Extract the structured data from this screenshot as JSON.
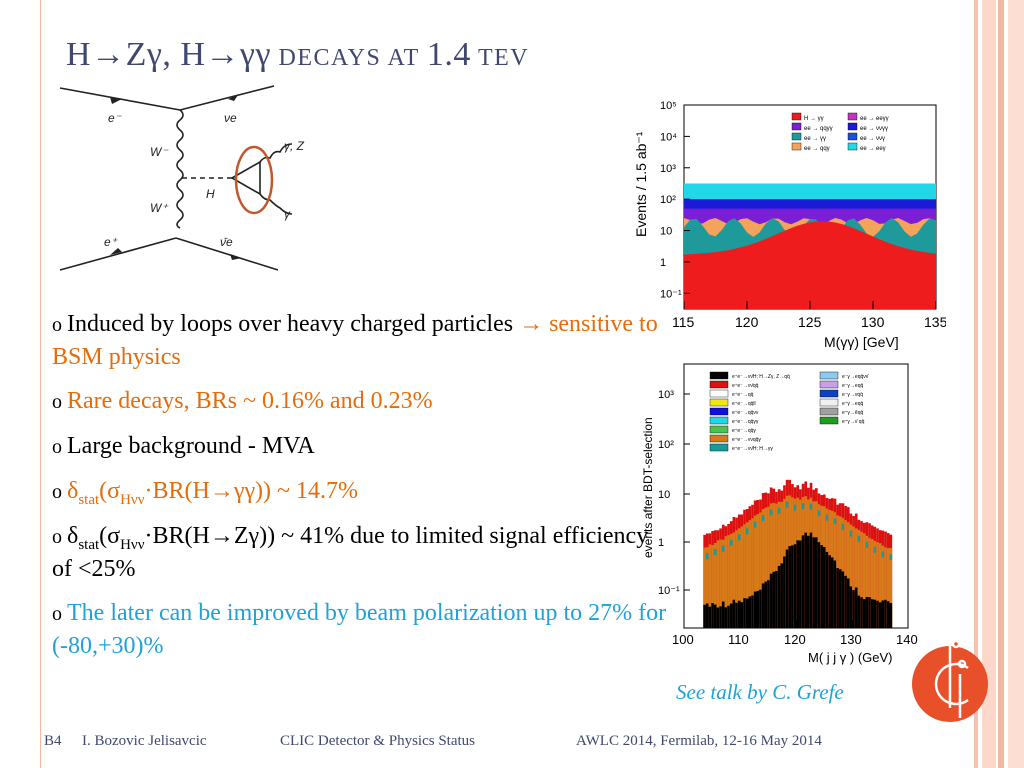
{
  "slide": {
    "title_h1": "H",
    "title_z": "Z",
    "title_g1": "γ, H",
    "title_g2": "γγ",
    "title_rest": " decays at ",
    "title_energy": "1.4",
    "title_unit": " TeV"
  },
  "diagram": {
    "labels": {
      "em": "e⁻",
      "ep": "e⁺",
      "nue": "νe",
      "nuebar": "ν̄e",
      "wm": "W⁻",
      "wp": "W⁺",
      "h": "H",
      "gz": "γ, Z",
      "g": "γ"
    },
    "circle_color": "#c0582b"
  },
  "bullets": {
    "b1_text": "Induced by loops over heavy charged particles ",
    "b1_arrow": "→",
    "b1_orange": " sensitive to BSM physics",
    "b2": "Rare decays, BRs ~ 0.16% and 0.23%",
    "b3": "Large background - MVA",
    "b4_delta": "δ",
    "b4_sub": "stat",
    "b4_a": "(σ",
    "b4_sub2": "Hνν",
    "b4_b": "·BR(H",
    "b4_c": "γγ)) ~ 14.7%",
    "b5_delta": "δ",
    "b5_sub": "stat",
    "b5_a": "(σ",
    "b5_sub2": "Hνν",
    "b5_b": "·BR(H",
    "b5_c": "Zγ)) ~ 41% due to limited signal efficiency of <25%",
    "b6": "The later can be improved by beam polarization up to 27% for (-80,+30)%"
  },
  "chart_data": [
    {
      "type": "area",
      "ylabel": "Events / 1.5 ab⁻¹",
      "xlabel": "M(γγ) [GeV]",
      "xlim": [
        115,
        135
      ],
      "ylim_log": [
        0.05,
        100000
      ],
      "scale": "log",
      "x_ticks": [
        "115",
        "120",
        "125",
        "130",
        "135"
      ],
      "y_ticks": [
        "10⁻¹",
        "1",
        "10",
        "10²",
        "10³",
        "10⁴",
        "10⁵"
      ],
      "legend": [
        {
          "name": "H → γγ",
          "color": "#ee1c1c"
        },
        {
          "name": "ee → qqγγ",
          "color": "#7a1fd6"
        },
        {
          "name": "ee → γγ",
          "color": "#1f9a9a"
        },
        {
          "name": "ee → qqγ",
          "color": "#f3a35a"
        },
        {
          "name": "ee → eeγγ",
          "color": "#c233c2"
        },
        {
          "name": "ee → ννγγ",
          "color": "#1b1bd6"
        },
        {
          "name": "ee → ννγ",
          "color": "#1b4fe0"
        },
        {
          "name": "ee → eeγ",
          "color": "#22d8e8"
        }
      ]
    },
    {
      "type": "bar",
      "ylabel": "events after BDT-selection",
      "xlabel": "M( j j γ ) (GeV)",
      "xlim": [
        100,
        140
      ],
      "scale": "log",
      "x_ticks": [
        "100",
        "110",
        "120",
        "130",
        "140"
      ],
      "y_ticks": [
        "10⁻¹",
        "1",
        "10",
        "10²",
        "10³"
      ],
      "legend": [
        {
          "name": "e⁺e⁻→νν̄H; H→Zγ, Z→qq̄",
          "color": "#000000"
        },
        {
          "name": "e⁺e⁻→νν̄qq̄",
          "color": "#dd1010"
        },
        {
          "name": "e⁺e⁻→qq̄",
          "color": "#ffffff"
        },
        {
          "name": "e⁺e⁻→qq̄ll",
          "color": "#f0e614"
        },
        {
          "name": "e⁺e⁻→qq̄νν",
          "color": "#1010dd"
        },
        {
          "name": "e⁺e⁻→qq̄γγ",
          "color": "#22d8e8"
        },
        {
          "name": "e⁺e⁻→qq̄γ",
          "color": "#4fc04f"
        },
        {
          "name": "e⁺e⁻→ννqq̄γ",
          "color": "#d67a1a"
        },
        {
          "name": "e⁺e⁻→νν̄H; H→γγ",
          "color": "#1a9a9a"
        },
        {
          "name": "e⁻γ→eqq̄νν̄",
          "color": "#90c8f0"
        },
        {
          "name": "e⁻γ→eqq̄",
          "color": "#c8a0e8"
        },
        {
          "name": "e⁻γ→νqq̄",
          "color": "#1040c0"
        },
        {
          "name": "e⁺γ→eqq̄",
          "color": "#f0f0f0"
        },
        {
          "name": "e⁺γ→ẽqq̄",
          "color": "#a0a0a0"
        },
        {
          "name": "e⁺γ→ν̄ qq̄",
          "color": "#1aa01a"
        }
      ]
    }
  ],
  "credit": "See talk by C. Grefe",
  "logo": {
    "text": "CLIC",
    "color": "#e8502a"
  },
  "footer": {
    "page": "B4",
    "author": "I. Bozovic Jelisavcic",
    "talk": "CLIC Detector & Physics Status",
    "event": "AWLC 2014, Fermilab, 12-16 May 2014"
  }
}
